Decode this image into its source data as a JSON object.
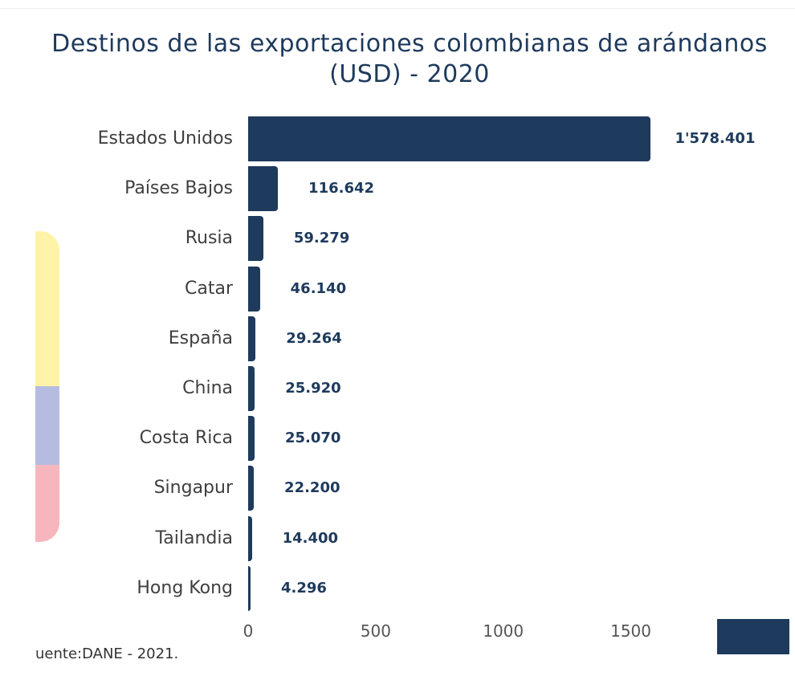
{
  "chart_data": {
    "type": "bar",
    "orientation": "horizontal",
    "title": "Destinos de las exportaciones colombianas de arándanos (USD) - 2020",
    "categories": [
      "Estados Unidos",
      "Países Bajos",
      "Rusia",
      "Catar",
      "España",
      "China",
      "Costa Rica",
      "Singapur",
      "Tailandia",
      "Hong Kong"
    ],
    "values": [
      1578.401,
      116.642,
      59.279,
      46.14,
      29.264,
      25.92,
      25.07,
      22.2,
      14.4,
      4.296
    ],
    "value_labels": [
      "1'578.401",
      "116.642",
      "59.279",
      "46.140",
      "29.264",
      "25.920",
      "25.070",
      "22.200",
      "14.400",
      "4.296"
    ],
    "x_ticks": [
      "0",
      "500",
      "1000",
      "1500"
    ],
    "xlim": [
      0,
      1600
    ],
    "color": "#1e3a5c",
    "grid": false,
    "legend": false
  },
  "source": "uente:DANE - 2021.",
  "colors": {
    "bar": "#1e3a5c",
    "flag_yellow": "#fff3a8",
    "flag_blue": "#b6bce0",
    "flag_red": "#f7b6bd"
  }
}
